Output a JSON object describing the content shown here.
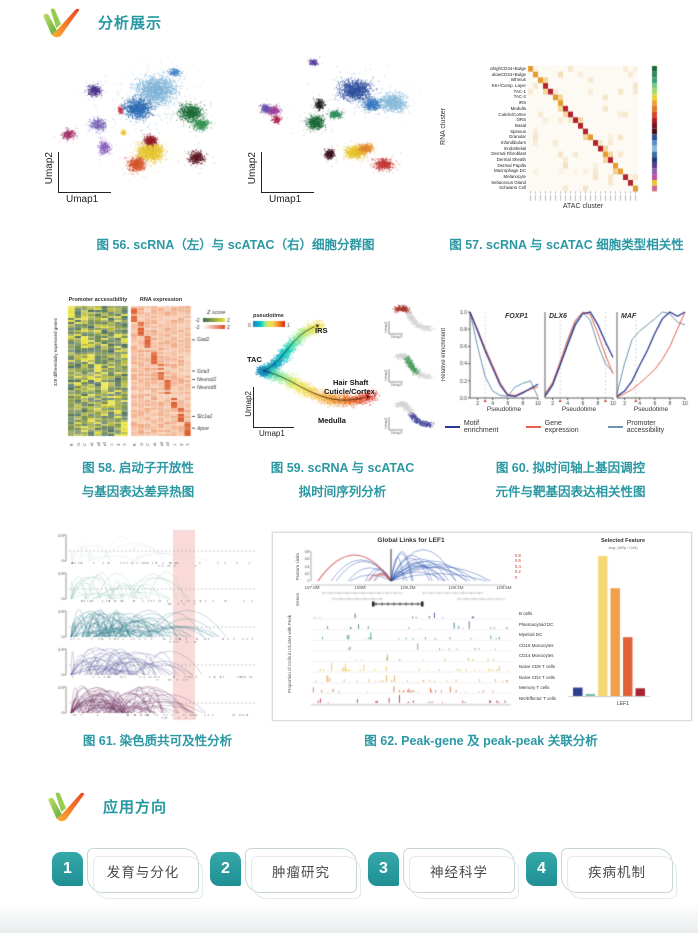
{
  "sections": {
    "analysis": {
      "title": "分析展示"
    },
    "applications": {
      "title": "应用方向",
      "items": [
        {
          "num": "1",
          "label": "发育与分化"
        },
        {
          "num": "2",
          "label": "肿瘤研究"
        },
        {
          "num": "3",
          "label": "神经科学"
        },
        {
          "num": "4",
          "label": "疾病机制"
        }
      ]
    }
  },
  "figures": {
    "fig56": {
      "caption": "图 56. scRNA（左）与 scATAC（右）细胞分群图",
      "xlabel": "Umap1",
      "ylabel": "Umap2"
    },
    "fig57": {
      "caption": "图 57. scRNA 与 scATAC 细胞类型相关性",
      "ylabel": "RNA cluster",
      "xlabel": "ATAC cluster",
      "rows": [
        "αhighCD34+Bulge",
        "αlowCD34+Bulge",
        "Isthmus",
        "K6+/Comp. Layer",
        "TAC-1",
        "TAC-2",
        "IRS",
        "Medulla",
        "Cuticle/Cortex",
        "ORS",
        "Basal",
        "Spinous",
        "Granular",
        "Infundibulum",
        "Endothelial",
        "Dermal Fibroblast",
        "Dermal Sheath",
        "Dermal Papilla",
        "Macrophage DC",
        "Melanocyte",
        "Sebaceous Gland",
        "Schwann Cell"
      ],
      "strip_colors": [
        "#1a6b35",
        "#2e8b57",
        "#3aa07a",
        "#7fc97f",
        "#a6d96a",
        "#e8d23c",
        "#e8a33d",
        "#e07b28",
        "#d14a28",
        "#b01f24",
        "#7a1520",
        "#4a0f1a",
        "#2f4f8f",
        "#5b8fc8",
        "#8fb8d8",
        "#3a6fa8",
        "#1f3a6b",
        "#5a3d8f",
        "#8f5fb0",
        "#c04f9e",
        "#e8c832",
        "#d16a8a"
      ]
    },
    "fig58": {
      "caption_lines": [
        "图 58. 启动子开放性",
        "与基因表达差异热图"
      ],
      "panel_titles": [
        "Promoter accessibility",
        "RNA expression"
      ],
      "ylabel": "328 differentially expressed genes",
      "legend_title": "Z score",
      "legend_min": "-2",
      "legend_max": "2",
      "columns": [
        "AS",
        "MG",
        "OC",
        "Ex1",
        "Ex2",
        "Ex3",
        "In1",
        "In2",
        "In3"
      ],
      "genes": [
        {
          "label": "Gad2",
          "t": 0.26
        },
        {
          "label": "Gria3",
          "t": 0.5
        },
        {
          "label": "Neurod2",
          "t": 0.565
        },
        {
          "label": "Neurod6",
          "t": 0.625
        },
        {
          "label": "Slc1a2",
          "t": 0.85
        },
        {
          "label": "Apoe",
          "t": 0.94
        }
      ]
    },
    "fig59": {
      "caption_lines": [
        "图 59. scRNA 与 scATAC",
        "拟时间序列分析"
      ],
      "colorbar_label": "pseudotime",
      "colorbar_min": "0",
      "colorbar_max": "1",
      "xlabel": "Umap1",
      "ylabel": "Umap2",
      "labels": {
        "tac": "TAC",
        "irs": "IRS",
        "hair1": "Hair Shaft",
        "hair2": "Cuticle/Cortex",
        "medulla": "Medulla"
      },
      "inset_axis_x": "Umap1",
      "inset_axis_y": "Umap2",
      "inset_colors": [
        "#a8352a",
        "#4e9e5f",
        "#4a4a9e"
      ]
    },
    "fig60": {
      "caption_lines": [
        "图 60. 拟时间轴上基因调控",
        "元件与靶基因表达相关性图"
      ],
      "ylabel": "Relative enrichment",
      "xlabel": "Pseudotime",
      "yticks": [
        "1.0",
        "0.8",
        "0.6",
        "0.4",
        "0.2",
        "0.0"
      ],
      "xticks": [
        "2",
        "4",
        "6",
        "8",
        "10"
      ],
      "legend": [
        {
          "label": "Motif enrichment",
          "color": "#2b3990"
        },
        {
          "label": "Gene expression",
          "color": "#e8604c"
        },
        {
          "label": "Promoter accessibility",
          "color": "#6e93ad"
        }
      ],
      "panels": [
        {
          "title": "FOXP1",
          "vlines": [
            3
          ],
          "series": {
            "motif": [
              [
                1,
                1
              ],
              [
                2,
                0.78
              ],
              [
                3,
                0.55
              ],
              [
                4,
                0.35
              ],
              [
                5,
                0.15
              ],
              [
                6,
                0.03
              ],
              [
                7,
                0.02
              ],
              [
                8,
                0.06
              ],
              [
                9,
                0.11
              ],
              [
                10,
                0.16
              ]
            ],
            "gene": [
              [
                1,
                1
              ],
              [
                2,
                0.8
              ],
              [
                3,
                0.58
              ],
              [
                4,
                0.38
              ],
              [
                5,
                0.18
              ],
              [
                6,
                0.04
              ],
              [
                7,
                0.03
              ],
              [
                8,
                0.07
              ],
              [
                9,
                0.1
              ],
              [
                10,
                0.13
              ]
            ],
            "promoter": [
              [
                1,
                1
              ],
              [
                2,
                0.6
              ],
              [
                3,
                0.25
              ],
              [
                4,
                0.08
              ],
              [
                5,
                0.03
              ],
              [
                6,
                0.02
              ],
              [
                7,
                0.13
              ],
              [
                8,
                0.17
              ],
              [
                9,
                0.2
              ],
              [
                10,
                0.01
              ]
            ]
          }
        },
        {
          "title": "DLX6",
          "vlines": [
            3,
            9
          ],
          "series": {
            "motif": [
              [
                1,
                0.02
              ],
              [
                2,
                0.15
              ],
              [
                3,
                0.38
              ],
              [
                4,
                0.62
              ],
              [
                5,
                0.85
              ],
              [
                6,
                0.98
              ],
              [
                7,
                1
              ],
              [
                8,
                0.85
              ],
              [
                9,
                0.65
              ],
              [
                10,
                0.47
              ]
            ],
            "gene": [
              [
                1,
                0.05
              ],
              [
                2,
                0.18
              ],
              [
                3,
                0.42
              ],
              [
                4,
                0.68
              ],
              [
                5,
                0.9
              ],
              [
                6,
                1
              ],
              [
                7,
                0.97
              ],
              [
                8,
                0.75
              ],
              [
                9,
                0.5
              ],
              [
                10,
                0.28
              ]
            ],
            "promoter": [
              [
                1,
                0.04
              ],
              [
                2,
                0.16
              ],
              [
                3,
                0.4
              ],
              [
                4,
                0.65
              ],
              [
                5,
                0.88
              ],
              [
                6,
                1
              ],
              [
                7,
                0.9
              ],
              [
                8,
                0.62
              ],
              [
                9,
                0.4
              ],
              [
                10,
                0.3
              ]
            ]
          }
        },
        {
          "title": "MAF",
          "vlines": [
            3.5
          ],
          "series": {
            "motif": [
              [
                1,
                0.02
              ],
              [
                2,
                0.08
              ],
              [
                3,
                0.2
              ],
              [
                4,
                0.38
              ],
              [
                5,
                0.55
              ],
              [
                6,
                0.75
              ],
              [
                7,
                0.92
              ],
              [
                8,
                1
              ],
              [
                9,
                0.95
              ],
              [
                10,
                1
              ]
            ],
            "gene": [
              [
                1,
                0.01
              ],
              [
                2,
                0.05
              ],
              [
                3,
                0.1
              ],
              [
                4,
                0.17
              ],
              [
                5,
                0.25
              ],
              [
                6,
                0.33
              ],
              [
                7,
                0.45
              ],
              [
                8,
                0.6
              ],
              [
                9,
                0.8
              ],
              [
                10,
                1
              ]
            ],
            "promoter": [
              [
                1,
                0.05
              ],
              [
                2,
                0.4
              ],
              [
                3,
                0.68
              ],
              [
                4,
                0.78
              ],
              [
                5,
                0.85
              ],
              [
                6,
                0.92
              ],
              [
                7,
                1
              ],
              [
                8,
                0.98
              ],
              [
                9,
                0.88
              ],
              [
                10,
                0.85
              ]
            ]
          }
        }
      ]
    },
    "fig61": {
      "caption": "图 61. 染色质共可及性分析",
      "ytick_top": "0.8",
      "ytick_bottom": "0",
      "highlight_color": "#f3b6b1",
      "tracks": [
        {
          "color": "#c9ded3",
          "density": 12
        },
        {
          "color": "#8fc3ab",
          "density": 28
        },
        {
          "color": "#2e7d8c",
          "density": 90
        },
        {
          "color": "#5b5a9e",
          "density": 55
        },
        {
          "color": "#6e2f5f",
          "density": 90
        }
      ]
    },
    "fig62": {
      "caption": "图 62. Peak-gene 及 peak-peak 关联分析",
      "title": "Global Links for LEF1",
      "feature_links_label": "Feature Links",
      "genes_label": "Genes",
      "prop_label": "Proportion of Cells in Cluster with Peak",
      "genome_ticks": [
        "107.8M",
        "108M",
        "108.2M",
        "108.4M",
        "108.6M"
      ],
      "link_scale": [
        "0.8",
        "0.6",
        "0.4",
        "0.2",
        "0"
      ],
      "link_colors": {
        "positive": "#2f55b0",
        "negative": "#cc3a30"
      },
      "clusters": [
        {
          "label": "B cells",
          "color": "#2f3f8f",
          "spikes": 12
        },
        {
          "label": "Plasmacytoid DC",
          "color": "#1f6b75",
          "spikes": 14
        },
        {
          "label": "Myeloid DC",
          "color": "#2e9077",
          "spikes": 18
        },
        {
          "label": "CD16 Monocytes",
          "color": "#6b8f7a",
          "spikes": 10
        },
        {
          "label": "CD14 Monocytes",
          "color": "#b5a93a",
          "spikes": 12
        },
        {
          "label": "Naive CD8 T cells",
          "color": "#e8c23c",
          "spikes": 30
        },
        {
          "label": "Naive CD4 T cells",
          "color": "#e8a04a",
          "spikes": 28
        },
        {
          "label": "Memory T cells",
          "color": "#d85f35",
          "spikes": 26
        },
        {
          "label": "NK/Effector T cells",
          "color": "#a82430",
          "spikes": 22
        }
      ],
      "selected_feature": {
        "title": "Selected Feature",
        "subtitle": "Avg. (#Rp / Cell)",
        "xlabel": "LEF1",
        "bars": [
          {
            "color": "#2f3f8f",
            "value": 0.06
          },
          {
            "color": "#7fbf9f",
            "value": 0.015
          },
          {
            "color": "#f5d876",
            "value": 1.0
          },
          {
            "color": "#f0a04a",
            "value": 0.77
          },
          {
            "color": "#e06038",
            "value": 0.42
          },
          {
            "color": "#a82430",
            "value": 0.055
          }
        ]
      }
    }
  }
}
